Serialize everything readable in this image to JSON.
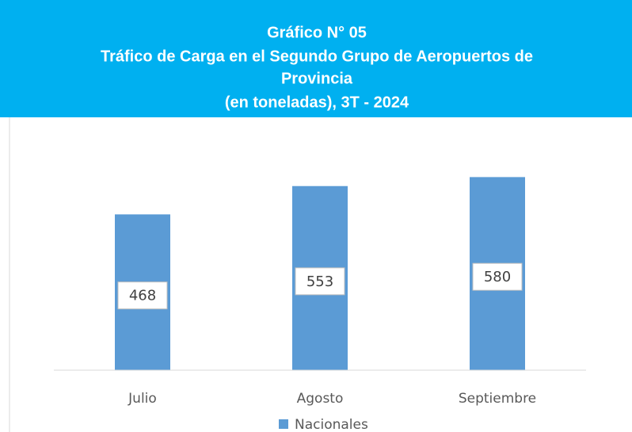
{
  "chart_data": {
    "type": "bar",
    "title": [
      "Gráfico N° 05",
      "Tráfico de Carga en el Segundo Grupo de Aeropuertos de",
      "Provincia",
      "(en toneladas), 3T - 2024"
    ],
    "categories": [
      "Julio",
      "Agosto",
      "Septiembre"
    ],
    "series": [
      {
        "name": "Nacionales",
        "color": "#5b9bd5",
        "values": [
          468,
          553,
          580
        ]
      }
    ],
    "ylim": [
      0,
      700
    ],
    "legend": "bottom"
  }
}
